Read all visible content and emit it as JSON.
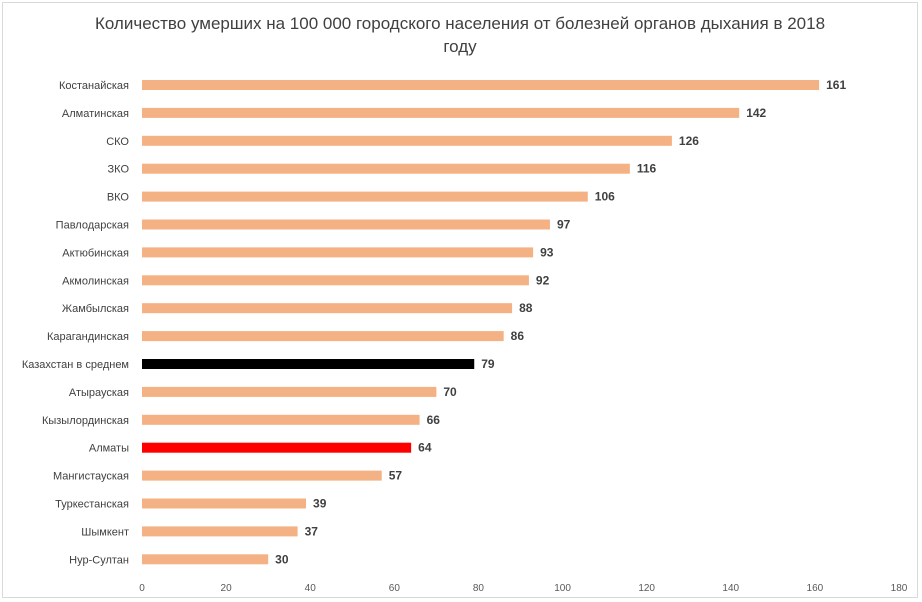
{
  "chart_data": {
    "type": "bar",
    "orientation": "horizontal",
    "title": "Количество умерших на 100 000  городского населения от болезней органов дыхания в 2018 году",
    "categories": [
      "Костанайская",
      "Алматинская",
      "СКО",
      "ЗКО",
      "ВКО",
      "Павлодарская",
      "Актюбинская",
      "Акмолинская",
      "Жамбылская",
      "Карагандинская",
      "Казахстан в среднем",
      "Атырауская",
      "Кызылординская",
      "Алматы",
      "Мангистауская",
      "Туркестанская",
      "Шымкент",
      "Нур-Султан"
    ],
    "values": [
      161,
      142,
      126,
      116,
      106,
      97,
      93,
      92,
      88,
      86,
      79,
      70,
      66,
      64,
      57,
      39,
      37,
      30
    ],
    "bar_colors": [
      "#F4B183",
      "#F4B183",
      "#F4B183",
      "#F4B183",
      "#F4B183",
      "#F4B183",
      "#F4B183",
      "#F4B183",
      "#F4B183",
      "#F4B183",
      "#000000",
      "#F4B183",
      "#F4B183",
      "#FF0000",
      "#F4B183",
      "#F4B183",
      "#F4B183",
      "#F4B183"
    ],
    "xlim": [
      0,
      180
    ],
    "xticks": [
      0,
      20,
      40,
      60,
      80,
      100,
      120,
      140,
      160,
      180
    ],
    "xlabel": "",
    "ylabel": "",
    "grid": false,
    "legend": "none",
    "data_labels": true
  }
}
